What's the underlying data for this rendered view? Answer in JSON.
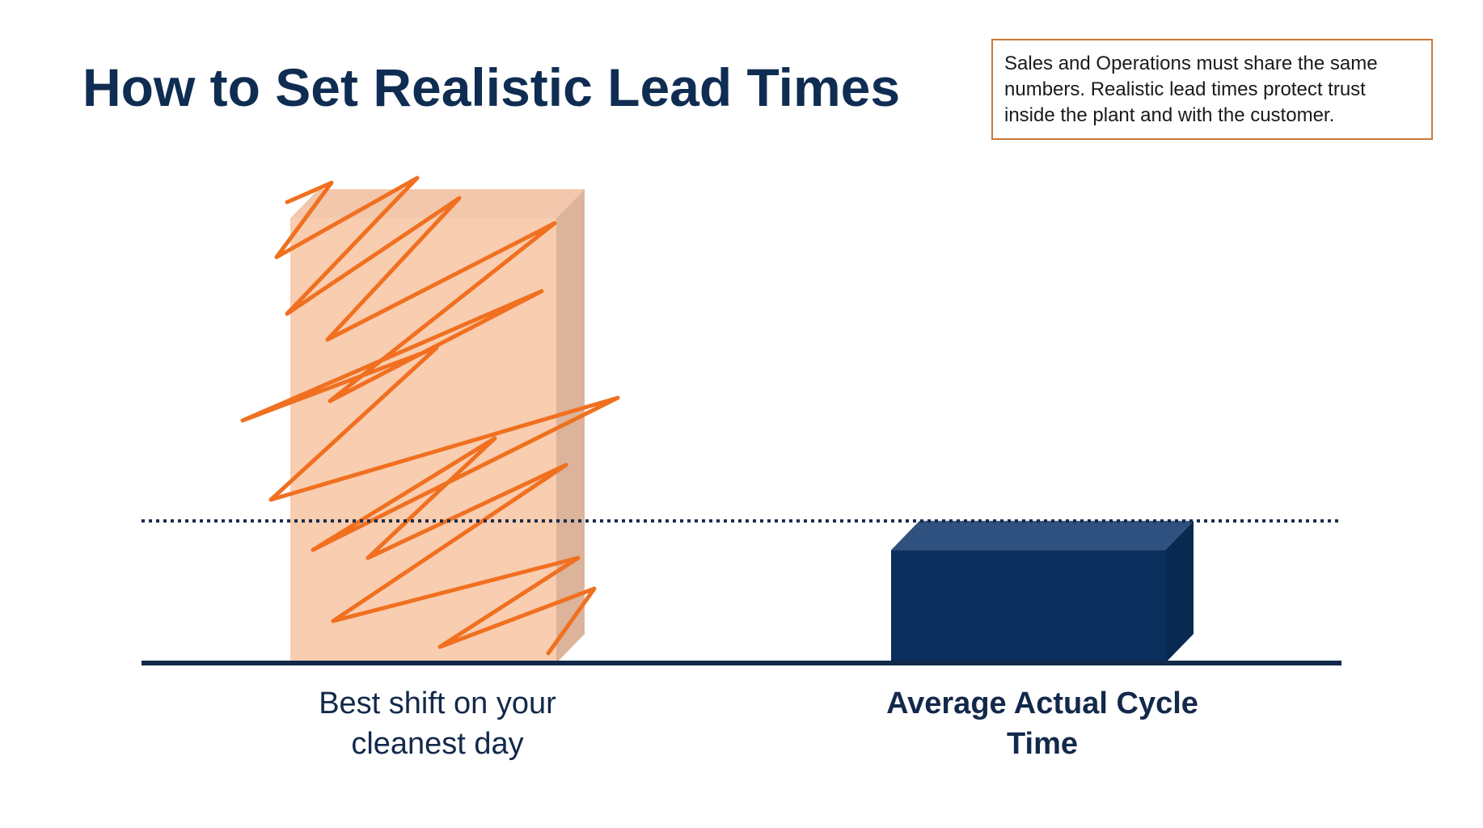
{
  "chart_data": {
    "type": "bar",
    "title": "How to Set Realistic Lead Times",
    "annotation": "Sales and Operations must share the same numbers. Realistic lead times protect trust inside the plant and with the customer.",
    "categories": [
      "Best shift on your cleanest day",
      "Average Actual Cycle Time"
    ],
    "values": [
      100,
      30
    ],
    "colors": [
      "#f9cdb0",
      "#0b2f5c"
    ],
    "reference_line": 30,
    "ylim": [
      0,
      100
    ]
  }
}
